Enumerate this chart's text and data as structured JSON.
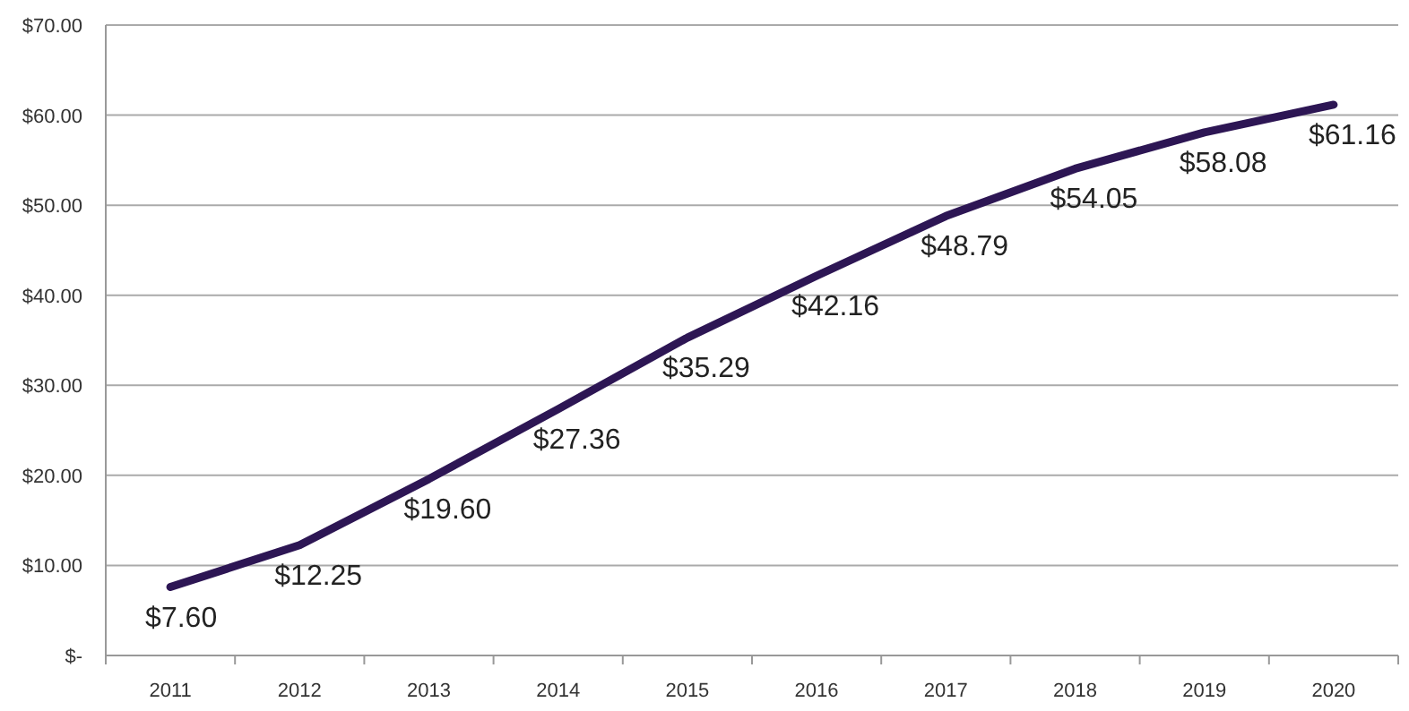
{
  "chart_data": {
    "type": "line",
    "categories": [
      "2011",
      "2012",
      "2013",
      "2014",
      "2015",
      "2016",
      "2017",
      "2018",
      "2019",
      "2020"
    ],
    "series": [
      {
        "color": "#2d1654",
        "values": [
          7.6,
          12.25,
          19.6,
          27.36,
          35.29,
          42.16,
          48.79,
          54.05,
          58.08,
          61.16
        ],
        "value_labels": [
          "$7.60",
          "$12.25",
          "$19.60",
          "$27.36",
          "$35.29",
          "$42.16",
          "$48.79",
          "$54.05",
          "$58.08",
          "$61.16"
        ]
      }
    ],
    "ylim": [
      0,
      70
    ],
    "yticks": [
      {
        "value": 0,
        "label": "$-"
      },
      {
        "value": 10,
        "label": "$10.00"
      },
      {
        "value": 20,
        "label": "$20.00"
      },
      {
        "value": 30,
        "label": "$30.00"
      },
      {
        "value": 40,
        "label": "$40.00"
      },
      {
        "value": 50,
        "label": "$50.00"
      },
      {
        "value": 60,
        "label": "$60.00"
      },
      {
        "value": 70,
        "label": "$70.00"
      }
    ],
    "grid": "y",
    "marker": "none",
    "line_style": "solid"
  }
}
